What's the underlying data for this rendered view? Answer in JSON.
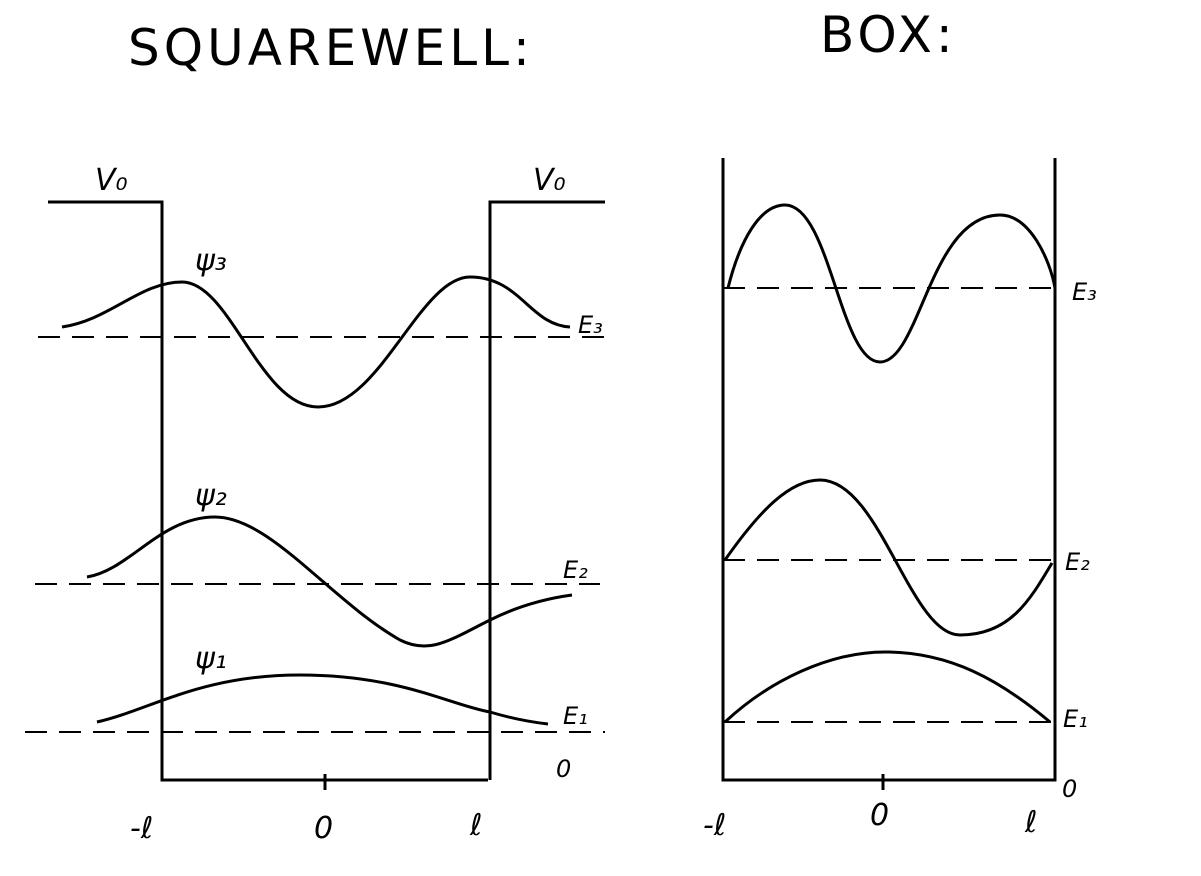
{
  "panels": [
    {
      "title": "SQUAREWELL:",
      "potential_labels": [
        "V₀",
        "V₀"
      ],
      "wavefunction_labels": [
        "ψ₃",
        "ψ₂",
        "ψ₁"
      ],
      "energy_labels": [
        "E₃",
        "E₂",
        "E₁"
      ],
      "zero_label": "0",
      "x_labels": [
        "-ℓ",
        "0",
        "ℓ"
      ]
    },
    {
      "title": "BOX:",
      "energy_labels": [
        "E₃",
        "E₂",
        "E₁"
      ],
      "zero_label": "0",
      "x_labels": [
        "-ℓ",
        "0",
        "ℓ"
      ]
    }
  ]
}
